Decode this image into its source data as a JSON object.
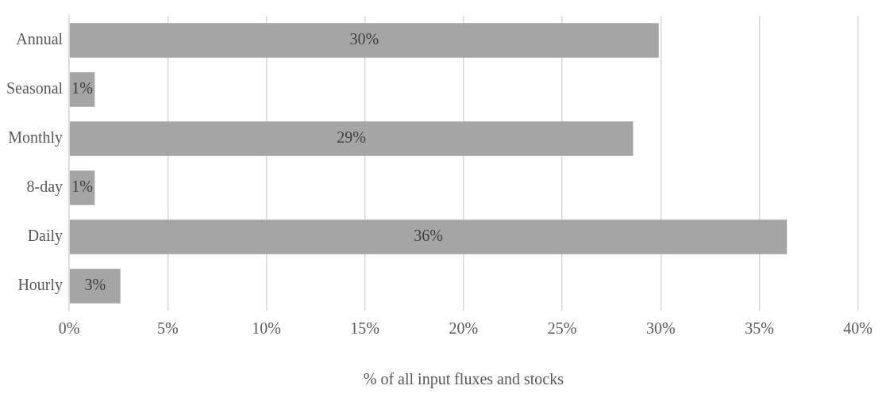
{
  "chart_data": {
    "type": "bar",
    "orientation": "horizontal",
    "xlabel": "% of all input fluxes and stocks",
    "categories": [
      "Annual",
      "Seasonal",
      "Monthly",
      "8-day",
      "Daily",
      "Hourly"
    ],
    "values": [
      29.9,
      1.3,
      28.6,
      1.3,
      36.4,
      2.6
    ],
    "value_labels": [
      "30%",
      "1%",
      "29%",
      "1%",
      "36%",
      "3%"
    ],
    "color": "#a5a5a5",
    "xlim": [
      0,
      40
    ],
    "xticks": [
      {
        "value": 0,
        "label": "0%"
      },
      {
        "value": 5,
        "label": "5%"
      },
      {
        "value": 10,
        "label": "10%"
      },
      {
        "value": 15,
        "label": "15%"
      },
      {
        "value": 20,
        "label": "20%"
      },
      {
        "value": 25,
        "label": "25%"
      },
      {
        "value": 30,
        "label": "30%"
      },
      {
        "value": 35,
        "label": "35%"
      },
      {
        "value": 40,
        "label": "40%"
      }
    ],
    "grid": "x"
  }
}
